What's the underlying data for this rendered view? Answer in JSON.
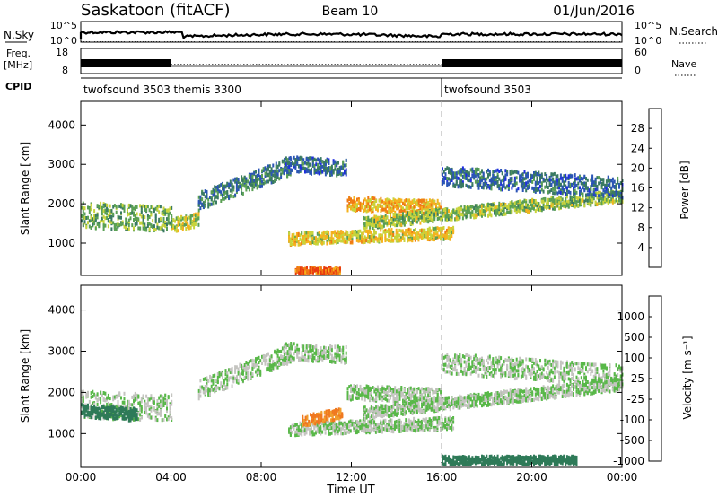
{
  "header": {
    "station": "Saskatoon (fitACF)",
    "beam": "Beam 10",
    "date": "01/Jun/2016"
  },
  "strips": {
    "nsky_label": "N.Sky",
    "nsearch_label": "N.Search",
    "nsky_ticks": [
      "10^5",
      "10^0"
    ],
    "nsearch_ticks": [
      "10^5",
      "10^0"
    ],
    "freq_label": "Freq.",
    "freq_unit": "[MHz]",
    "freq_ticks": [
      "18",
      "8"
    ],
    "nave_label": "Nave",
    "nave_ticks": [
      "60",
      "0"
    ],
    "cpid_label": "CPID",
    "cpid_segments": [
      {
        "name": "twofsound 3503",
        "start": 0,
        "end": 4
      },
      {
        "name": "themis 3300",
        "start": 4,
        "end": 16
      },
      {
        "name": "twofsound 3503",
        "start": 16,
        "end": 24
      }
    ]
  },
  "axes": {
    "x_label": "Time UT",
    "x_ticks": [
      "00:00",
      "04:00",
      "08:00",
      "12:00",
      "16:00",
      "20:00",
      "00:00"
    ],
    "y_label": "Slant Range [km]",
    "y_ticks": [
      "1000",
      "2000",
      "3000",
      "4000"
    ]
  },
  "colorbars": {
    "power": {
      "label": "Power [dB]",
      "ticks": [
        "4",
        "8",
        "12",
        "16",
        "20",
        "24",
        "28"
      ],
      "colors": [
        "#1f2de0",
        "#2b55b5",
        "#3a7a62",
        "#5aa054",
        "#c8d43c",
        "#f5b21e",
        "#f07a14",
        "#e83a10"
      ]
    },
    "velocity": {
      "label": "Velocity [m s⁻¹]",
      "ticks": [
        "1000",
        "500",
        "100",
        "25",
        "-25",
        "-100",
        "-500",
        "-1000"
      ],
      "colors": [
        "#2040b0",
        "#3a6ec0",
        "#2e7a58",
        "#58b848",
        "#c4c4c0",
        "#f0a030",
        "#f07820",
        "#e02010"
      ]
    }
  },
  "chart_data": [
    {
      "type": "heatmap",
      "title": "Power",
      "xlabel": "Time UT",
      "ylabel": "Slant Range [km]",
      "xlim": [
        0,
        24
      ],
      "ylim": [
        180,
        4600
      ],
      "colorbar": "Power [dB]",
      "bands": [
        {
          "start": 0.0,
          "end": 4.0,
          "center": [
            1700,
            1620
          ],
          "width": 650,
          "power": 14
        },
        {
          "start": 4.0,
          "end": 5.2,
          "center": [
            1450,
            1600
          ],
          "width": 350,
          "power": 18
        },
        {
          "start": 5.2,
          "end": 9.3,
          "center": [
            2050,
            2950
          ],
          "width": 450,
          "power": 10
        },
        {
          "start": 9.0,
          "end": 11.8,
          "center": [
            3000,
            2900
          ],
          "width": 400,
          "power": 8
        },
        {
          "start": 11.8,
          "end": 16.0,
          "center": [
            2000,
            1900
          ],
          "width": 350,
          "power": 22
        },
        {
          "start": 9.2,
          "end": 16.5,
          "center": [
            1100,
            1250
          ],
          "width": 300,
          "power": 20
        },
        {
          "start": 12.5,
          "end": 24.0,
          "center": [
            1500,
            2200
          ],
          "width": 300,
          "power": 16
        },
        {
          "start": 9.5,
          "end": 11.5,
          "center": [
            300,
            300
          ],
          "width": 150,
          "power": 28
        },
        {
          "start": 16.0,
          "end": 24.0,
          "center": [
            2700,
            2400
          ],
          "width": 500,
          "power": 8
        }
      ]
    },
    {
      "type": "heatmap",
      "title": "Velocity",
      "xlabel": "Time UT",
      "ylabel": "Slant Range [km]",
      "xlim": [
        0,
        24
      ],
      "ylim": [
        180,
        4600
      ],
      "colorbar": "Velocity [m s-1]",
      "bands": [
        {
          "start": 0.0,
          "end": 4.0,
          "center": [
            1700,
            1620
          ],
          "width": 650,
          "velocity": 0
        },
        {
          "start": 0.0,
          "end": 2.5,
          "center": [
            1550,
            1450
          ],
          "width": 300,
          "velocity": 120
        },
        {
          "start": 5.2,
          "end": 9.3,
          "center": [
            2050,
            2950
          ],
          "width": 450,
          "velocity": 0
        },
        {
          "start": 9.0,
          "end": 11.8,
          "center": [
            3000,
            2900
          ],
          "width": 400,
          "velocity": 0
        },
        {
          "start": 11.8,
          "end": 16.0,
          "center": [
            2000,
            1900
          ],
          "width": 350,
          "velocity": 0
        },
        {
          "start": 9.2,
          "end": 16.5,
          "center": [
            1100,
            1250
          ],
          "width": 300,
          "velocity": 0
        },
        {
          "start": 9.8,
          "end": 11.6,
          "center": [
            1300,
            1500
          ],
          "width": 250,
          "velocity": -300
        },
        {
          "start": 12.5,
          "end": 24.0,
          "center": [
            1500,
            2200
          ],
          "width": 300,
          "velocity": 0
        },
        {
          "start": 16.0,
          "end": 24.0,
          "center": [
            2700,
            2400
          ],
          "width": 500,
          "velocity": 0
        },
        {
          "start": 16.0,
          "end": 22.0,
          "center": [
            350,
            350
          ],
          "width": 200,
          "velocity": 150
        }
      ]
    }
  ]
}
